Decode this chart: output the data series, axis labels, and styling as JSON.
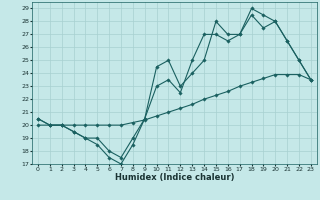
{
  "xlabel": "Humidex (Indice chaleur)",
  "xlim": [
    -0.5,
    23.5
  ],
  "ylim": [
    17,
    29.5
  ],
  "yticks": [
    17,
    18,
    19,
    20,
    21,
    22,
    23,
    24,
    25,
    26,
    27,
    28,
    29
  ],
  "xticks": [
    0,
    1,
    2,
    3,
    4,
    5,
    6,
    7,
    8,
    9,
    10,
    11,
    12,
    13,
    14,
    15,
    16,
    17,
    18,
    19,
    20,
    21,
    22,
    23
  ],
  "bg_color": "#c5e8e8",
  "grid_color": "#a8d0d0",
  "line_color": "#1a6060",
  "series": [
    {
      "x": [
        0,
        1,
        2,
        3,
        4,
        5,
        6,
        7,
        8,
        9,
        10,
        11,
        12,
        13,
        14,
        15,
        16,
        17,
        18,
        19,
        20,
        21,
        22,
        23
      ],
      "y": [
        20.0,
        20.0,
        20.0,
        20.0,
        20.0,
        20.0,
        20.0,
        20.0,
        20.2,
        20.4,
        20.7,
        21.0,
        21.3,
        21.6,
        22.0,
        22.3,
        22.6,
        23.0,
        23.3,
        23.6,
        23.9,
        23.9,
        23.9,
        23.5
      ]
    },
    {
      "x": [
        0,
        1,
        2,
        3,
        4,
        5,
        6,
        7,
        8,
        9,
        10,
        11,
        12,
        13,
        14,
        15,
        16,
        17,
        18,
        19,
        20,
        21,
        22,
        23
      ],
      "y": [
        20.5,
        20.0,
        20.0,
        19.5,
        19.0,
        18.5,
        17.5,
        17.0,
        18.5,
        20.5,
        23.0,
        23.5,
        22.5,
        25.0,
        27.0,
        27.0,
        26.5,
        27.0,
        29.0,
        28.5,
        28.0,
        26.5,
        25.0,
        23.5
      ]
    },
    {
      "x": [
        0,
        1,
        2,
        3,
        4,
        5,
        6,
        7,
        8,
        9,
        10,
        11,
        12,
        13,
        14,
        15,
        16,
        17,
        18,
        19,
        20,
        21,
        22,
        23
      ],
      "y": [
        20.5,
        20.0,
        20.0,
        19.5,
        19.0,
        19.0,
        18.0,
        17.5,
        19.0,
        20.5,
        24.5,
        25.0,
        23.0,
        24.0,
        25.0,
        28.0,
        27.0,
        27.0,
        28.5,
        27.5,
        28.0,
        26.5,
        25.0,
        23.5
      ]
    }
  ],
  "marker": "D",
  "marker_size": 1.8,
  "linewidth": 0.8,
  "xlabel_fontsize": 6,
  "tick_fontsize": 4.5
}
